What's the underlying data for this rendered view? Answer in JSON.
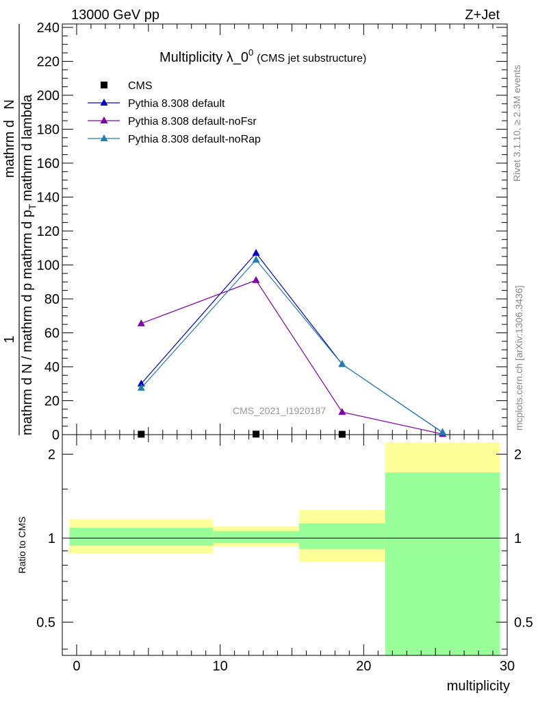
{
  "header": {
    "left": "13000 GeV pp",
    "right": "Z+Jet",
    "title_main": "Multiplicity λ_0",
    "title_sup": "0",
    "title_sub": "(CMS jet substructure)",
    "watermark": "CMS_2021_I1920187"
  },
  "side_labels": {
    "rivet": "Rivet 3.1.10, ≥ 2.3M events",
    "mcplots": "mcplots.cern.ch [arXiv:1306.3436]"
  },
  "y_axis_title": {
    "numerator_1": "1",
    "numerator_2": "mathrm d",
    "numerator_3": "N",
    "denominator_1": "mathrm d N / mathrm d p",
    "denominator_2": "mathrm d p",
    "denominator_3": "mathrm d lambda",
    "subscript": "T"
  },
  "colors": {
    "cms": "#000000",
    "default": "#0000cc",
    "noFsr": "#8000aa",
    "noRap": "#1f7fb0",
    "band_yellow": "#ffff99",
    "band_green": "#99ff99"
  },
  "chart_data": [
    {
      "type": "line",
      "title": "Multiplicity λ_0^0 (CMS jet substructure)",
      "xlabel": "multiplicity",
      "ylabel": "1 / (mathrm d N / mathrm d p_T) · mathrm d²N / (mathrm d p_T mathrm d lambda)",
      "xlim": [
        -1,
        30
      ],
      "ylim": [
        0,
        242
      ],
      "yticks": [
        0,
        20,
        40,
        60,
        80,
        100,
        120,
        140,
        160,
        180,
        200,
        220,
        240
      ],
      "ytick_labels": [
        "0",
        "20",
        "40",
        "60",
        "80",
        "100",
        "120",
        "140",
        "160",
        "180",
        "200",
        "220",
        "240"
      ],
      "legend_position": "top-left",
      "x": [
        4.5,
        12.5,
        18.5,
        25.5
      ],
      "series": [
        {
          "name": "CMS",
          "marker": "square",
          "values": [
            0.25,
            0.3,
            0.2,
            0.0
          ]
        },
        {
          "name": "Pythia 8.308 default",
          "marker": "triangle",
          "values": [
            30,
            107,
            41.5,
            1.3
          ]
        },
        {
          "name": "Pythia 8.308 default-noFsr",
          "marker": "triangle",
          "values": [
            65.5,
            91,
            13.3,
            0.3
          ]
        },
        {
          "name": "Pythia 8.308 default-noRap",
          "marker": "triangle",
          "values": [
            27.5,
            103,
            41.5,
            1.2
          ]
        }
      ]
    },
    {
      "type": "area",
      "ylabel": "Ratio to CMS",
      "xlabel": "multiplicity",
      "xlim": [
        -1,
        30
      ],
      "ylim": [
        0.38,
        2.35
      ],
      "log_y": true,
      "yticks": [
        0.5,
        1,
        2
      ],
      "ytick_labels": [
        "0.5",
        "1",
        "2"
      ],
      "xticks": [
        0,
        10,
        20,
        30
      ],
      "xtick_labels": [
        "0",
        "10",
        "20",
        "30"
      ],
      "bins": [
        [
          -0.5,
          9.5
        ],
        [
          9.5,
          15.5
        ],
        [
          15.5,
          21.5
        ],
        [
          21.5,
          29.5
        ]
      ],
      "bands": [
        {
          "name": "total uncertainty",
          "color": "yellow",
          "low": [
            0.88,
            0.935,
            0.82,
            0.38
          ],
          "high": [
            1.17,
            1.1,
            1.26,
            2.2
          ]
        },
        {
          "name": "statistical uncertainty",
          "color": "green",
          "low": [
            0.94,
            0.96,
            0.915,
            0.38
          ],
          "high": [
            1.09,
            1.06,
            1.13,
            1.72
          ]
        }
      ]
    }
  ]
}
